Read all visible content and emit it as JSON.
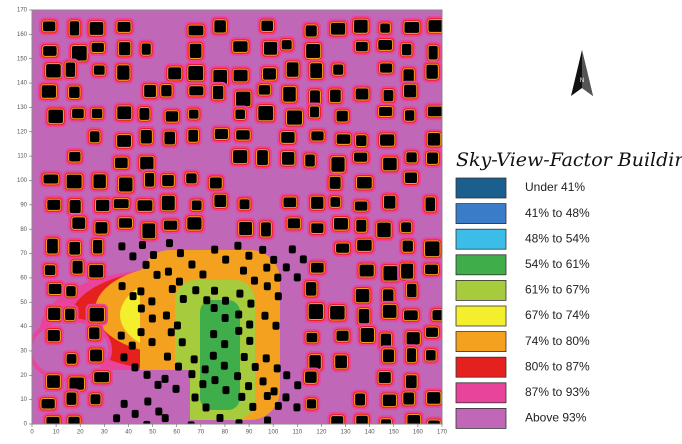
{
  "map": {
    "x_axis_ticks": [
      0,
      10,
      20,
      30,
      40,
      50,
      60,
      70,
      80,
      90,
      100,
      110,
      120,
      130,
      140,
      150,
      160,
      170
    ],
    "y_axis_ticks": [
      0,
      10,
      20,
      30,
      40,
      50,
      60,
      70,
      80,
      90,
      100,
      110,
      120,
      130,
      140,
      150,
      160,
      170
    ]
  },
  "legend": {
    "title": "Sky-View-Factor Buildings",
    "items": [
      {
        "label": "Under 41%",
        "color": "#1b5f8f"
      },
      {
        "label": "41% to 48%",
        "color": "#3a7cc8"
      },
      {
        "label": "48% to 54%",
        "color": "#3cbce8"
      },
      {
        "label": "54% to 61%",
        "color": "#3fae4a"
      },
      {
        "label": "61% to 67%",
        "color": "#a6cb3c"
      },
      {
        "label": "67% to 74%",
        "color": "#f4ef2c"
      },
      {
        "label": "74% to 80%",
        "color": "#f4a11f"
      },
      {
        "label": "80% to 87%",
        "color": "#e5211f"
      },
      {
        "label": "87% to 93%",
        "color": "#e8449b"
      },
      {
        "label": "Above 93%",
        "color": "#c067b8"
      }
    ]
  }
}
